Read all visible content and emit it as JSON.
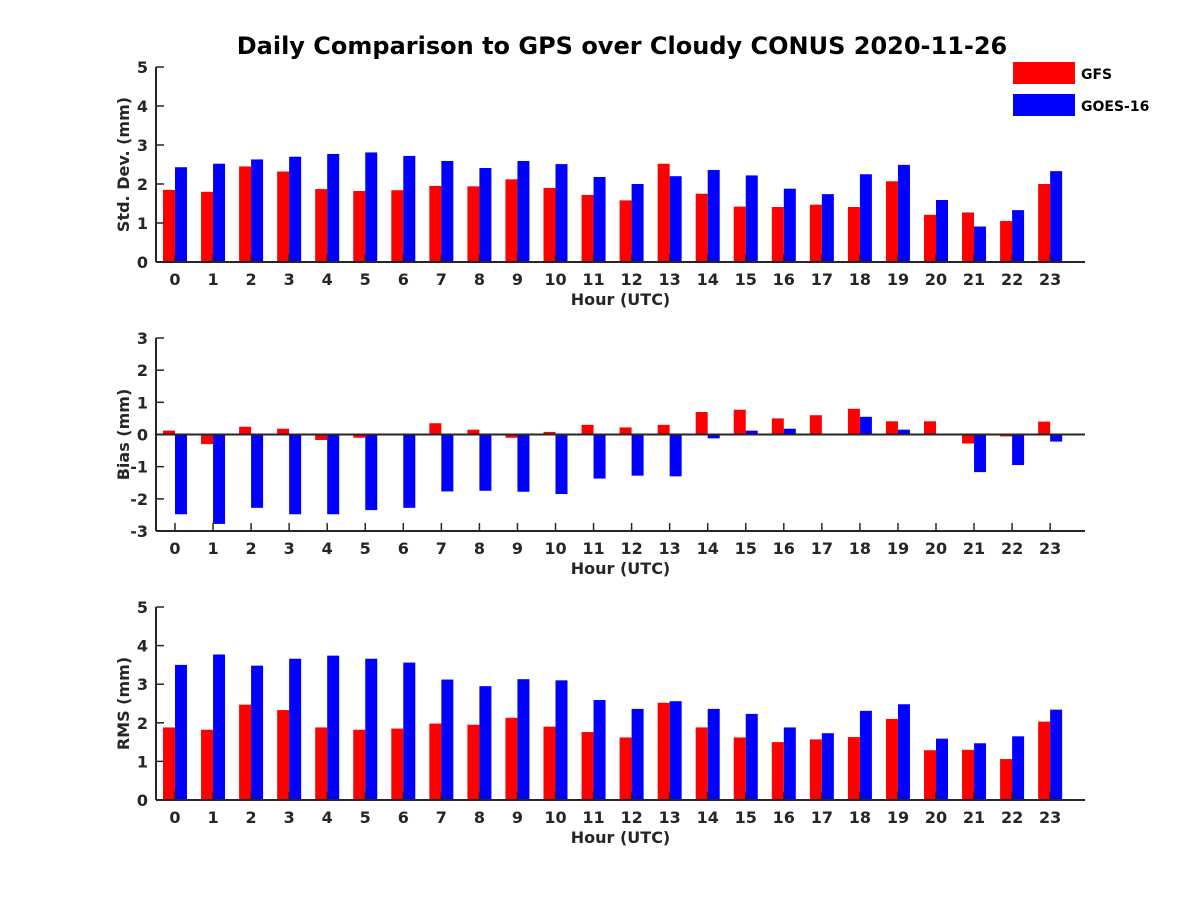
{
  "title": "Daily Comparison to GPS over Cloudy CONUS 2020-11-26",
  "legend": [
    {
      "name": "GFS",
      "color": "#ff0000"
    },
    {
      "name": "GOES-16",
      "color": "#0000ff"
    }
  ],
  "chart_data": [
    {
      "type": "bar",
      "ylabel": "Std. Dev. (mm)",
      "xlabel": "Hour (UTC)",
      "ylim": [
        0,
        5
      ],
      "yticks": [
        0,
        1,
        2,
        3,
        4,
        5
      ],
      "categories": [
        "0",
        "1",
        "2",
        "3",
        "4",
        "5",
        "6",
        "7",
        "8",
        "9",
        "10",
        "11",
        "12",
        "13",
        "14",
        "15",
        "16",
        "17",
        "18",
        "19",
        "20",
        "21",
        "22",
        "23"
      ],
      "series": [
        {
          "name": "GFS",
          "values": [
            1.85,
            1.8,
            2.45,
            2.32,
            1.87,
            1.82,
            1.84,
            1.95,
            1.94,
            2.12,
            1.9,
            1.72,
            1.58,
            2.52,
            1.75,
            1.42,
            1.41,
            1.47,
            1.41,
            2.07,
            1.21,
            1.27,
            1.05,
            2.0
          ]
        },
        {
          "name": "GOES-16",
          "values": [
            2.43,
            2.52,
            2.63,
            2.7,
            2.77,
            2.81,
            2.72,
            2.59,
            2.41,
            2.59,
            2.51,
            2.18,
            2.0,
            2.2,
            2.36,
            2.22,
            1.88,
            1.74,
            2.25,
            2.49,
            1.59,
            0.91,
            1.33,
            2.33
          ]
        }
      ]
    },
    {
      "type": "bar",
      "ylabel": "Bias (mm)",
      "xlabel": "Hour (UTC)",
      "ylim": [
        -3,
        3
      ],
      "yticks": [
        -3,
        -2,
        -1,
        0,
        1,
        2,
        3
      ],
      "categories": [
        "0",
        "1",
        "2",
        "3",
        "4",
        "5",
        "6",
        "7",
        "8",
        "9",
        "10",
        "11",
        "12",
        "13",
        "14",
        "15",
        "16",
        "17",
        "18",
        "19",
        "20",
        "21",
        "22",
        "23"
      ],
      "series": [
        {
          "name": "GFS",
          "values": [
            0.12,
            -0.3,
            0.24,
            0.18,
            -0.17,
            -0.1,
            -0.03,
            0.35,
            0.15,
            -0.1,
            0.08,
            0.3,
            0.22,
            0.3,
            0.7,
            0.77,
            0.5,
            0.6,
            0.8,
            0.41,
            0.41,
            -0.28,
            -0.06,
            0.4
          ]
        },
        {
          "name": "GOES-16",
          "values": [
            -2.48,
            -2.78,
            -2.28,
            -2.48,
            -2.48,
            -2.35,
            -2.28,
            -1.77,
            -1.75,
            -1.78,
            -1.85,
            -1.37,
            -1.28,
            -1.3,
            -0.12,
            0.12,
            0.18,
            0.03,
            0.55,
            0.15,
            0.03,
            -1.17,
            -0.95,
            -0.22
          ]
        }
      ]
    },
    {
      "type": "bar",
      "ylabel": "RMS (mm)",
      "xlabel": "Hour (UTC)",
      "ylim": [
        0,
        5
      ],
      "yticks": [
        0,
        1,
        2,
        3,
        4,
        5
      ],
      "categories": [
        "0",
        "1",
        "2",
        "3",
        "4",
        "5",
        "6",
        "7",
        "8",
        "9",
        "10",
        "11",
        "12",
        "13",
        "14",
        "15",
        "16",
        "17",
        "18",
        "19",
        "20",
        "21",
        "22",
        "23"
      ],
      "series": [
        {
          "name": "GFS",
          "values": [
            1.88,
            1.82,
            2.47,
            2.33,
            1.88,
            1.82,
            1.85,
            1.98,
            1.95,
            2.13,
            1.9,
            1.76,
            1.62,
            2.52,
            1.88,
            1.62,
            1.5,
            1.57,
            1.63,
            2.1,
            1.29,
            1.3,
            1.06,
            2.03
          ]
        },
        {
          "name": "GOES-16",
          "values": [
            3.5,
            3.77,
            3.48,
            3.66,
            3.74,
            3.66,
            3.56,
            3.12,
            2.95,
            3.13,
            3.1,
            2.59,
            2.36,
            2.56,
            2.36,
            2.23,
            1.88,
            1.73,
            2.31,
            2.48,
            1.59,
            1.47,
            1.65,
            2.34
          ]
        }
      ]
    }
  ]
}
